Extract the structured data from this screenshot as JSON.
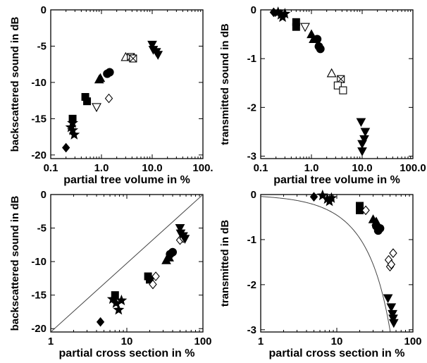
{
  "chart_data": [
    {
      "type": "scatter",
      "xlabel": "partial tree volume in %",
      "ylabel": "backscattered sound in dB",
      "xscale": "log",
      "xlim": [
        0.1,
        100
      ],
      "ylim": [
        -20.5,
        0
      ],
      "xticks": [
        0.1,
        1,
        10,
        100
      ],
      "xtick_labels": [
        "0.1",
        "1.0",
        "10.0",
        "100."
      ],
      "yticks": [
        0,
        -5,
        -10,
        -15,
        -20
      ],
      "ytick_labels": [
        "0",
        "-5",
        "-10",
        "-15",
        "-20"
      ],
      "grid": false,
      "series": [
        {
          "marker": "diamond",
          "filled": true,
          "points": [
            [
              0.2,
              -19.0
            ]
          ]
        },
        {
          "marker": "star",
          "filled": true,
          "points": [
            [
              0.27,
              -15.6
            ],
            [
              0.27,
              -16.6
            ],
            [
              0.29,
              -17.2
            ],
            [
              0.25,
              -16.2
            ]
          ]
        },
        {
          "marker": "square",
          "filled": true,
          "points": [
            [
              0.27,
              -15.0
            ],
            [
              0.48,
              -12.0
            ],
            [
              0.52,
              -12.6
            ]
          ]
        },
        {
          "marker": "triangle-up",
          "filled": true,
          "points": [
            [
              0.9,
              -9.6
            ],
            [
              0.95,
              -9.4
            ]
          ]
        },
        {
          "marker": "circle",
          "filled": true,
          "points": [
            [
              1.3,
              -8.8
            ],
            [
              1.45,
              -8.6
            ]
          ]
        },
        {
          "marker": "diamond",
          "filled": false,
          "points": [
            [
              1.4,
              -12.2
            ]
          ]
        },
        {
          "marker": "triangle-down",
          "filled": false,
          "points": [
            [
              0.8,
              -13.4
            ]
          ]
        },
        {
          "marker": "triangle-up",
          "filled": false,
          "points": [
            [
              3.0,
              -6.5
            ]
          ]
        },
        {
          "marker": "square-x",
          "filled": false,
          "points": [
            [
              3.8,
              -6.5
            ],
            [
              4.2,
              -6.7
            ]
          ]
        },
        {
          "marker": "triangle-down",
          "filled": true,
          "points": [
            [
              10.0,
              -4.8
            ],
            [
              10.5,
              -5.5
            ],
            [
              12.0,
              -5.8
            ],
            [
              13.0,
              -6.2
            ]
          ]
        }
      ]
    },
    {
      "type": "scatter",
      "xlabel": "partial tree volume in %",
      "ylabel": "transmitted sound in dB",
      "xscale": "log",
      "xlim": [
        0.1,
        100
      ],
      "ylim": [
        -3.05,
        0
      ],
      "xticks": [
        0.1,
        1,
        10,
        100
      ],
      "xtick_labels": [
        "0.1",
        "1.0",
        "10.0",
        "100.0"
      ],
      "yticks": [
        0,
        -1,
        -2,
        -3
      ],
      "ytick_labels": [
        "0",
        "-1",
        "-2",
        "-3"
      ],
      "grid": false,
      "series": [
        {
          "marker": "diamond",
          "filled": true,
          "points": [
            [
              0.18,
              -0.05
            ]
          ]
        },
        {
          "marker": "star",
          "filled": true,
          "points": [
            [
              0.22,
              -0.05
            ],
            [
              0.25,
              -0.1
            ],
            [
              0.27,
              -0.15
            ],
            [
              0.3,
              -0.08
            ]
          ]
        },
        {
          "marker": "square",
          "filled": true,
          "points": [
            [
              0.5,
              -0.25
            ],
            [
              0.5,
              -0.35
            ]
          ]
        },
        {
          "marker": "triangle-down",
          "filled": false,
          "points": [
            [
              0.75,
              -0.35
            ]
          ]
        },
        {
          "marker": "triangle-up",
          "filled": true,
          "points": [
            [
              1.0,
              -0.5
            ],
            [
              1.1,
              -0.6
            ]
          ]
        },
        {
          "marker": "circle",
          "filled": true,
          "points": [
            [
              1.3,
              -0.6
            ],
            [
              1.4,
              -0.75
            ],
            [
              1.5,
              -0.8
            ]
          ]
        },
        {
          "marker": "triangle-up",
          "filled": false,
          "points": [
            [
              2.5,
              -1.3
            ]
          ]
        },
        {
          "marker": "square-x",
          "filled": false,
          "points": [
            [
              3.8,
              -1.42
            ]
          ]
        },
        {
          "marker": "square",
          "filled": false,
          "points": [
            [
              3.3,
              -1.55
            ],
            [
              4.2,
              -1.65
            ]
          ]
        },
        {
          "marker": "triangle-down",
          "filled": true,
          "points": [
            [
              9.5,
              -2.3
            ],
            [
              11.5,
              -2.5
            ],
            [
              11.0,
              -2.65
            ],
            [
              10.0,
              -2.75
            ],
            [
              10.0,
              -2.9
            ]
          ]
        }
      ]
    },
    {
      "type": "scatter",
      "xlabel": "partial cross section in %",
      "ylabel": "backscattered sound in dB",
      "xscale": "log",
      "xlim": [
        1,
        100
      ],
      "ylim": [
        -20.5,
        0
      ],
      "xticks": [
        1,
        10,
        100
      ],
      "xtick_labels": [
        "1",
        "10",
        "100"
      ],
      "yticks": [
        0,
        -5,
        -10,
        -15,
        -20
      ],
      "ytick_labels": [
        "0",
        "-5",
        "-10",
        "-15",
        "-20"
      ],
      "grid": false,
      "reference_line": {
        "x": [
          1,
          100
        ],
        "y": [
          -20.5,
          0
        ]
      },
      "series": [
        {
          "marker": "diamond",
          "filled": true,
          "points": [
            [
              4.5,
              -19.0
            ]
          ]
        },
        {
          "marker": "star",
          "filled": true,
          "points": [
            [
              6.5,
              -15.6
            ],
            [
              7.2,
              -16.2
            ],
            [
              7.8,
              -17.2
            ],
            [
              8.5,
              -15.8
            ]
          ]
        },
        {
          "marker": "square",
          "filled": true,
          "points": [
            [
              7.0,
              -15.0
            ],
            [
              19.0,
              -12.2
            ],
            [
              20.0,
              -12.7
            ]
          ]
        },
        {
          "marker": "diamond",
          "filled": false,
          "points": [
            [
              22.0,
              -13.4
            ],
            [
              24.0,
              -12.2
            ],
            [
              50.0,
              -6.8
            ],
            [
              55.0,
              -6.5
            ]
          ]
        },
        {
          "marker": "triangle-up",
          "filled": true,
          "points": [
            [
              33.0,
              -9.8
            ],
            [
              36.0,
              -9.4
            ]
          ]
        },
        {
          "marker": "circle",
          "filled": true,
          "points": [
            [
              37.0,
              -8.9
            ],
            [
              40.0,
              -8.6
            ]
          ]
        },
        {
          "marker": "triangle-down",
          "filled": true,
          "points": [
            [
              50.0,
              -5.0
            ],
            [
              51.0,
              -5.8
            ],
            [
              55.0,
              -6.2
            ],
            [
              58.0,
              -6.6
            ]
          ]
        }
      ]
    },
    {
      "type": "scatter",
      "xlabel": "partial cross section in %",
      "ylabel": "transmitted in dB",
      "xscale": "log",
      "xlim": [
        1,
        100
      ],
      "ylim": [
        -3.05,
        0
      ],
      "xticks": [
        1,
        10,
        100
      ],
      "xtick_labels": [
        "1",
        "10",
        "100"
      ],
      "yticks": [
        0,
        -1,
        -2,
        -3
      ],
      "ytick_labels": [
        "0",
        "-1",
        "-2",
        "-3"
      ],
      "grid": false,
      "reference_curve": {
        "formula": "y = 10*log10(1 - x/100)",
        "x": [
          1,
          2,
          3,
          5,
          8,
          12,
          18,
          25,
          32,
          38,
          43,
          47,
          50
        ]
      },
      "series": [
        {
          "marker": "diamond",
          "filled": true,
          "points": [
            [
              5.0,
              -0.05
            ]
          ]
        },
        {
          "marker": "star",
          "filled": true,
          "points": [
            [
              6.5,
              -0.02
            ],
            [
              7.5,
              -0.1
            ],
            [
              8.0,
              -0.15
            ],
            [
              8.5,
              -0.08
            ]
          ]
        },
        {
          "marker": "square",
          "filled": true,
          "points": [
            [
              20.0,
              -0.25
            ],
            [
              20.0,
              -0.35
            ]
          ]
        },
        {
          "marker": "diamond",
          "filled": false,
          "points": [
            [
              24.0,
              -0.35
            ],
            [
              55.0,
              -1.3
            ],
            [
              48.0,
              -1.45
            ],
            [
              50.0,
              -1.6
            ],
            [
              52.0,
              -1.55
            ]
          ]
        },
        {
          "marker": "triangle-up",
          "filled": true,
          "points": [
            [
              30.0,
              -0.55
            ],
            [
              33.0,
              -0.6
            ]
          ]
        },
        {
          "marker": "circle",
          "filled": true,
          "points": [
            [
              33.0,
              -0.7
            ],
            [
              35.0,
              -0.8
            ],
            [
              37.0,
              -0.75
            ]
          ]
        },
        {
          "marker": "triangle-down",
          "filled": true,
          "points": [
            [
              47.0,
              -2.3
            ],
            [
              52.0,
              -2.5
            ],
            [
              54.0,
              -2.65
            ],
            [
              55.0,
              -2.75
            ],
            [
              56.0,
              -2.85
            ]
          ]
        }
      ]
    }
  ]
}
